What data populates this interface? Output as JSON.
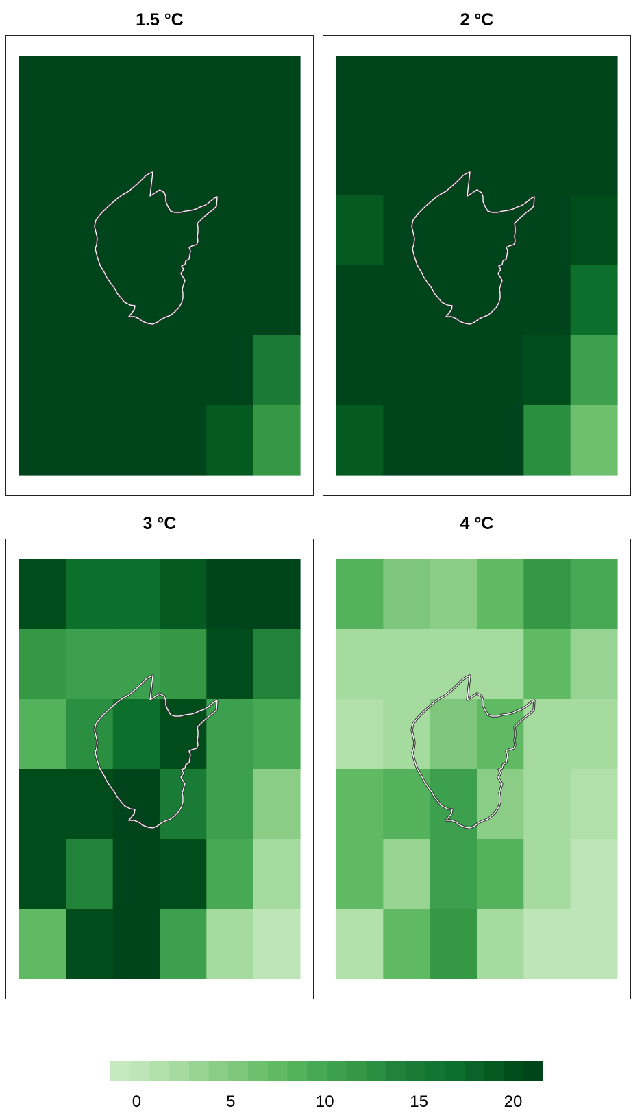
{
  "chart_data": {
    "type": "heatmap",
    "grid": {
      "rows": 6,
      "cols": 6
    },
    "panels": [
      {
        "title": "1.5 °C",
        "values": [
          [
            21,
            21,
            21,
            21,
            21,
            21
          ],
          [
            21,
            21,
            21,
            21,
            21,
            21
          ],
          [
            21,
            21,
            21,
            21,
            21,
            21
          ],
          [
            21,
            21,
            21,
            21,
            21,
            21
          ],
          [
            21,
            21,
            21,
            21,
            21,
            15
          ],
          [
            21,
            21,
            21,
            21,
            19,
            12
          ]
        ]
      },
      {
        "title": "2 °C",
        "values": [
          [
            21,
            21,
            21,
            21,
            21,
            21
          ],
          [
            21,
            21,
            21,
            21,
            21,
            21
          ],
          [
            19,
            21,
            21,
            21,
            21,
            20
          ],
          [
            21,
            21,
            21,
            21,
            21,
            17
          ],
          [
            21,
            21,
            21,
            21,
            20,
            11
          ],
          [
            19,
            21,
            21,
            21,
            13,
            7
          ]
        ]
      },
      {
        "title": "3 °C",
        "values": [
          [
            20,
            17,
            17,
            19,
            22,
            21
          ],
          [
            12,
            11,
            11,
            12,
            20,
            14
          ],
          [
            9,
            13,
            17,
            20,
            11,
            10
          ],
          [
            20,
            20,
            22,
            15,
            11,
            5
          ],
          [
            20,
            14,
            22,
            20,
            10,
            3
          ],
          [
            8,
            20,
            22,
            11,
            3,
            1
          ]
        ]
      },
      {
        "title": "4 °C",
        "values": [
          [
            9,
            6,
            5,
            8,
            12,
            10
          ],
          [
            3,
            3,
            3,
            3,
            8,
            4
          ],
          [
            2,
            3,
            6,
            8,
            3,
            3
          ],
          [
            8,
            9,
            11,
            5,
            3,
            2
          ],
          [
            8,
            4,
            11,
            9,
            3,
            1
          ],
          [
            2,
            8,
            12,
            3,
            1,
            1
          ]
        ]
      }
    ],
    "colorbar": {
      "min": -1,
      "max": 22,
      "ticks": [
        0,
        5,
        10,
        15,
        20
      ],
      "tick_labels": [
        "0",
        "5",
        "10",
        "15",
        "20"
      ],
      "colors": [
        "#c7e9c0",
        "#bee5b8",
        "#b1e0ab",
        "#a5db9f",
        "#97d493",
        "#8bcd87",
        "#7dc67c",
        "#6ec06e",
        "#60ba64",
        "#53b25b",
        "#47a954",
        "#3da04f",
        "#349845",
        "#2b8f42",
        "#218239",
        "#1a7b36",
        "#127531",
        "#0d6f2c",
        "#0a6328",
        "#055a22",
        "#004d1b",
        "#00441b"
      ]
    }
  }
}
